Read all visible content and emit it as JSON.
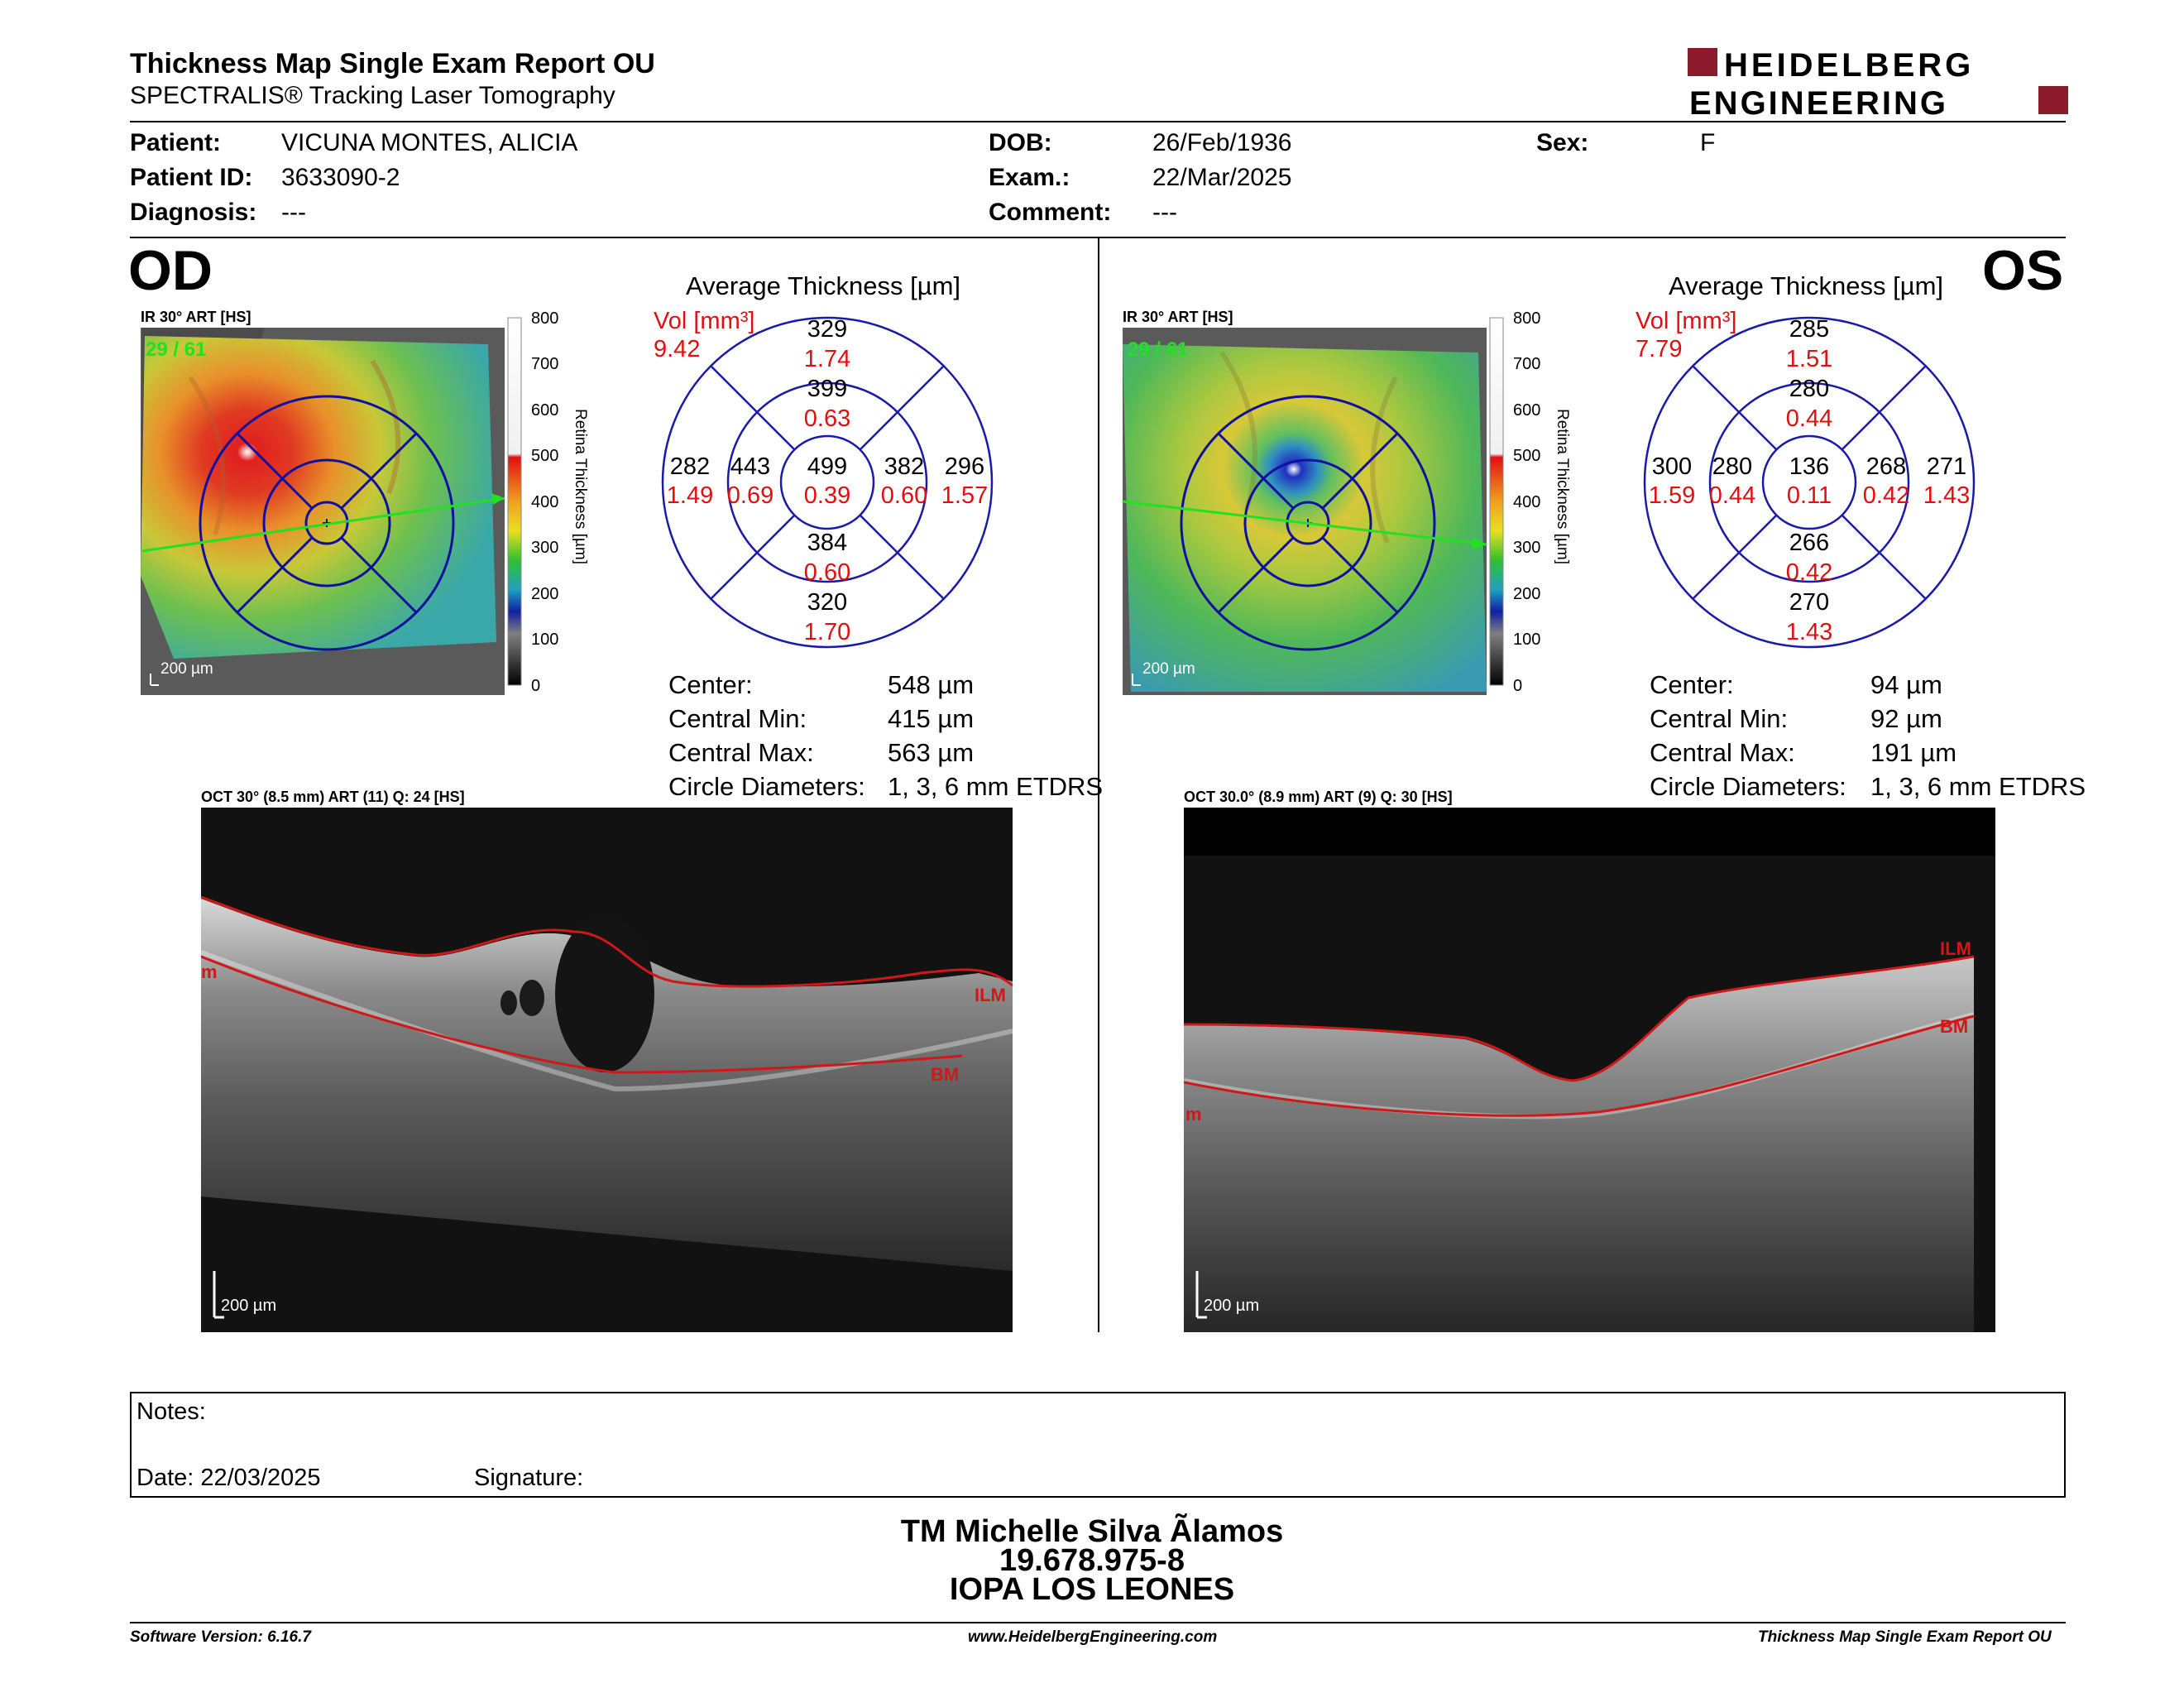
{
  "header": {
    "title": "Thickness Map Single Exam Report OU",
    "subtitle": "SPECTRALIS® Tracking Laser Tomography",
    "logo_line1": "HEIDELBERG",
    "logo_line2": "ENGINEERING"
  },
  "patient": {
    "patient_label": "Patient:",
    "patient_value": "VICUNA MONTES, ALICIA",
    "id_label": "Patient ID:",
    "id_value": "3633090-2",
    "diagnosis_label": "Diagnosis:",
    "diagnosis_value": "---",
    "dob_label": "DOB:",
    "dob_value": "26/Feb/1936",
    "exam_label": "Exam.:",
    "exam_value": "22/Mar/2025",
    "comment_label": "Comment:",
    "comment_value": "---",
    "sex_label": "Sex:",
    "sex_value": "F"
  },
  "od": {
    "eye": "OD",
    "ir_caption": "IR 30° ART [HS]",
    "frames": "29 / 61",
    "scale": "200 µm",
    "colorbar_title": "Retina Thickness [µm]",
    "colorbar_ticks": [
      "800",
      "700",
      "600",
      "500",
      "400",
      "300",
      "200",
      "100",
      "0"
    ],
    "avg_title": "Average Thickness [µm]",
    "vol_label": "Vol [mm³]",
    "vol_value": "9.42",
    "grid": {
      "outer_superior": [
        "329",
        "1.74"
      ],
      "inner_superior": [
        "399",
        "0.63"
      ],
      "outer_nasal": [
        "282",
        "1.49"
      ],
      "inner_nasal": [
        "443",
        "0.69"
      ],
      "center": [
        "499",
        "0.39"
      ],
      "inner_temporal": [
        "382",
        "0.60"
      ],
      "outer_temporal": [
        "296",
        "1.57"
      ],
      "inner_inferior": [
        "384",
        "0.60"
      ],
      "outer_inferior": [
        "320",
        "1.70"
      ]
    },
    "stats": [
      {
        "label": "Center:",
        "value": "548 µm"
      },
      {
        "label": "Central Min:",
        "value": "415 µm"
      },
      {
        "label": "Central Max:",
        "value": "563 µm"
      },
      {
        "label": "Circle Diameters:",
        "value": "1, 3, 6 mm ETDRS"
      }
    ],
    "oct_caption": "OCT 30° (8.5 mm) ART (11) Q: 24 [HS]",
    "oct_scale": "200 µm",
    "ilm": "ILM",
    "bm": "BM",
    "edge_label": "m"
  },
  "os": {
    "eye": "OS",
    "ir_caption": "IR 30° ART [HS]",
    "frames": "29 / 61",
    "scale": "200 µm",
    "colorbar_title": "Retina Thickness [µm]",
    "colorbar_ticks": [
      "800",
      "700",
      "600",
      "500",
      "400",
      "300",
      "200",
      "100",
      "0"
    ],
    "avg_title": "Average Thickness [µm]",
    "vol_label": "Vol [mm³]",
    "vol_value": "7.79",
    "grid": {
      "outer_superior": [
        "285",
        "1.51"
      ],
      "inner_superior": [
        "280",
        "0.44"
      ],
      "outer_nasal": [
        "300",
        "1.59"
      ],
      "inner_nasal": [
        "280",
        "0.44"
      ],
      "center": [
        "136",
        "0.11"
      ],
      "inner_temporal": [
        "268",
        "0.42"
      ],
      "outer_temporal": [
        "271",
        "1.43"
      ],
      "inner_inferior": [
        "266",
        "0.42"
      ],
      "outer_inferior": [
        "270",
        "1.43"
      ]
    },
    "stats": [
      {
        "label": "Center:",
        "value": "94 µm"
      },
      {
        "label": "Central Min:",
        "value": "92 µm"
      },
      {
        "label": "Central Max:",
        "value": "191 µm"
      },
      {
        "label": "Circle Diameters:",
        "value": "1, 3, 6 mm ETDRS"
      }
    ],
    "oct_caption": "OCT 30.0° (8.9 mm) ART (9) Q: 30 [HS]",
    "oct_scale": "200 µm",
    "ilm": "ILM",
    "bm": "BM",
    "edge_label": "m"
  },
  "notes": {
    "notes_label": "Notes:",
    "date_label": "Date: 22/03/2025",
    "signature_label": "Signature:"
  },
  "signoff": {
    "name": "TM Michelle Silva Ãlamos",
    "rut": "19.678.975-8",
    "institution": "IOPA LOS LEONES"
  },
  "footer": {
    "software": "Software Version: 6.16.7",
    "website": "www.HeidelbergEngineering.com",
    "report": "Thickness Map Single Exam Report OU"
  },
  "colors": {
    "grid_blue": "#1a1aa8",
    "volume_red": "#e01010",
    "scan_green": "#22e022",
    "logo_red": "#8b1a2b",
    "layer_red": "#d01818"
  }
}
